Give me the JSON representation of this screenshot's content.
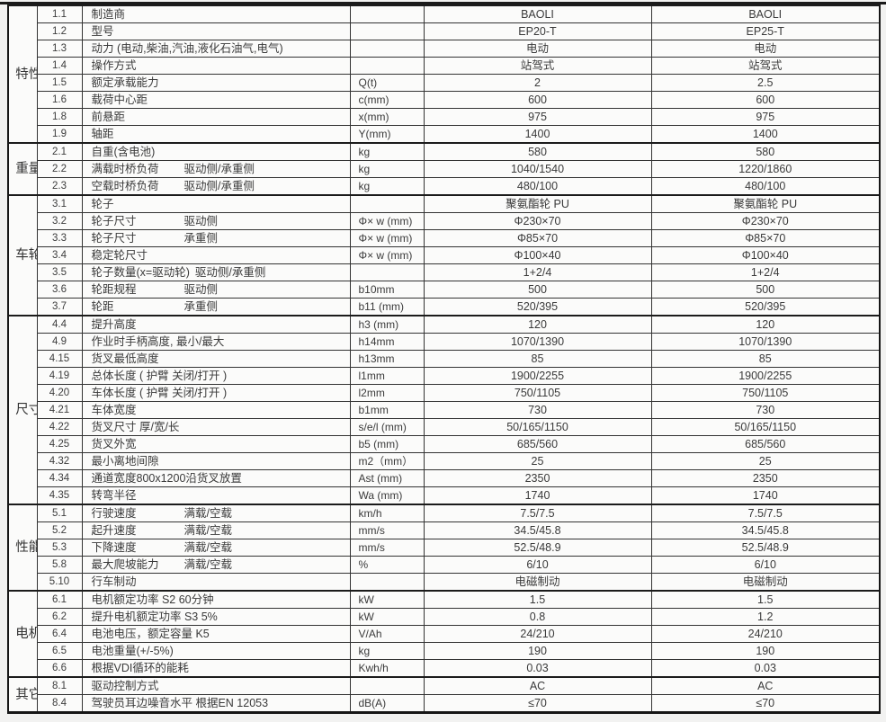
{
  "document": {
    "type": "specification-table",
    "brand": "BAOLI",
    "models": [
      "EP20-T",
      "EP25-T"
    ],
    "border_color": "#1b1b1b",
    "text_color": "#3a3a3a",
    "noise_level_symbol": "≤70"
  },
  "sections": [
    {
      "category": "特性",
      "rows": [
        {
          "no": "1.1",
          "label": "制造商",
          "label2": "",
          "unit": "",
          "v1": "BAOLI",
          "v2": "BAOLI"
        },
        {
          "no": "1.2",
          "label": "型号",
          "label2": "",
          "unit": "",
          "v1": "EP20-T",
          "v2": "EP25-T"
        },
        {
          "no": "1.3",
          "label": "动力 (电动,柴油,汽油,液化石油气,电气)",
          "label2": "",
          "unit": "",
          "v1": "电动",
          "v2": "电动"
        },
        {
          "no": "1.4",
          "label": "操作方式",
          "label2": "",
          "unit": "",
          "v1": "站驾式",
          "v2": "站驾式"
        },
        {
          "no": "1.5",
          "label": "额定承载能力",
          "label2": "",
          "unit": "Q(t)",
          "v1": "2",
          "v2": "2.5"
        },
        {
          "no": "1.6",
          "label": "载荷中心距",
          "label2": "",
          "unit": "c(mm)",
          "v1": "600",
          "v2": "600"
        },
        {
          "no": "1.8",
          "label": "前悬距",
          "label2": "",
          "unit": "x(mm)",
          "v1": "975",
          "v2": "975"
        },
        {
          "no": "1.9",
          "label": "轴距",
          "label2": "",
          "unit": "Y(mm)",
          "v1": "1400",
          "v2": "1400"
        }
      ]
    },
    {
      "category": "重量",
      "rows": [
        {
          "no": "2.1",
          "label": "自重(含电池)",
          "label2": "",
          "unit": "kg",
          "v1": "580",
          "v2": "580"
        },
        {
          "no": "2.2",
          "label": "满载时桥负荷",
          "label2": "驱动侧/承重侧",
          "unit": "kg",
          "v1": "1040/1540",
          "v2": "1220/1860"
        },
        {
          "no": "2.3",
          "label": "空载时桥负荷",
          "label2": "驱动侧/承重侧",
          "unit": "kg",
          "v1": "480/100",
          "v2": "480/100"
        }
      ]
    },
    {
      "category": "车轮底盘",
      "rows": [
        {
          "no": "3.1",
          "label": "轮子",
          "label2": "",
          "unit": "",
          "v1": "聚氨酯轮 PU",
          "v2": "聚氨酯轮 PU"
        },
        {
          "no": "3.2",
          "label": "轮子尺寸",
          "label2": "驱动侧",
          "unit": "Φ× w (mm)",
          "v1": "Φ230×70",
          "v2": "Φ230×70"
        },
        {
          "no": "3.3",
          "label": "轮子尺寸",
          "label2": "承重侧",
          "unit": "Φ× w (mm)",
          "v1": "Φ85×70",
          "v2": "Φ85×70"
        },
        {
          "no": "3.4",
          "label": "稳定轮尺寸",
          "label2": "",
          "unit": "Φ× w (mm)",
          "v1": "Φ100×40",
          "v2": "Φ100×40"
        },
        {
          "no": "3.5",
          "label": "轮子数量(x=驱动轮)",
          "label2": "驱动侧/承重侧",
          "unit": "",
          "v1": "1+2/4",
          "v2": "1+2/4"
        },
        {
          "no": "3.6",
          "label": "轮距规程",
          "label2": "驱动侧",
          "unit": "b10mm",
          "v1": "500",
          "v2": "500"
        },
        {
          "no": "3.7",
          "label": "轮距",
          "label2": "承重侧",
          "unit": "b11 (mm)",
          "v1": "520/395",
          "v2": "520/395"
        }
      ]
    },
    {
      "category": "尺寸",
      "spread": true,
      "rows": [
        {
          "no": "4.4",
          "label": "提升高度",
          "label2": "",
          "unit": "h3 (mm)",
          "v1": "120",
          "v2": "120"
        },
        {
          "no": "4.9",
          "label": "作业时手柄高度, 最小/最大",
          "label2": "",
          "unit": "h14mm",
          "v1": "1070/1390",
          "v2": "1070/1390"
        },
        {
          "no": "4.15",
          "label": "货叉最低高度",
          "label2": "",
          "unit": "h13mm",
          "v1": "85",
          "v2": "85"
        },
        {
          "no": "4.19",
          "label": "总体长度 ( 护臂 关闭/打开 )",
          "label2": "",
          "unit": "l1mm",
          "v1": "1900/2255",
          "v2": "1900/2255"
        },
        {
          "no": "4.20",
          "label": "车体长度 ( 护臂 关闭/打开 )",
          "label2": "",
          "unit": "l2mm",
          "v1": "750/1105",
          "v2": "750/1105"
        },
        {
          "no": "4.21",
          "label": "车体宽度",
          "label2": "",
          "unit": "b1mm",
          "v1": "730",
          "v2": "730"
        },
        {
          "no": "4.22",
          "label": "货叉尺寸  厚/宽/长",
          "label2": "",
          "unit": "s/e/l (mm)",
          "v1": "50/165/1150",
          "v2": "50/165/1150"
        },
        {
          "no": "4.25",
          "label": "货叉外宽",
          "label2": "",
          "unit": "b5 (mm)",
          "v1": "685/560",
          "v2": "685/560"
        },
        {
          "no": "4.32",
          "label": "最小离地间隙",
          "label2": "",
          "unit": "m2（mm）",
          "v1": "25",
          "v2": "25"
        },
        {
          "no": "4.34",
          "label": "通道宽度800x1200沿货叉放置",
          "label2": "",
          "unit": "Ast (mm)",
          "v1": "2350",
          "v2": "2350"
        },
        {
          "no": "4.35",
          "label": "转弯半径",
          "label2": "",
          "unit": "Wa (mm)",
          "v1": "1740",
          "v2": "1740"
        }
      ]
    },
    {
      "category": "性能",
      "rows": [
        {
          "no": "5.1",
          "label": "行驶速度",
          "label2": "满载/空载",
          "unit": "km/h",
          "v1": "7.5/7.5",
          "v2": "7.5/7.5"
        },
        {
          "no": "5.2",
          "label": "起升速度",
          "label2": "满载/空载",
          "unit": "mm/s",
          "v1": "34.5/45.8",
          "v2": "34.5/45.8"
        },
        {
          "no": "5.3",
          "label": "下降速度",
          "label2": "满载/空载",
          "unit": "mm/s",
          "v1": "52.5/48.9",
          "v2": "52.5/48.9"
        },
        {
          "no": "5.8",
          "label": "最大爬坡能力",
          "label2": "满载/空载",
          "unit": "%",
          "v1": "6/10",
          "v2": "6/10"
        },
        {
          "no": "5.10",
          "label": "行车制动",
          "label2": "",
          "unit": "",
          "v1": "电磁制动",
          "v2": "电磁制动"
        }
      ]
    },
    {
      "category": "电机",
      "rows": [
        {
          "no": "6.1",
          "label": "电机额定功率 S2  60分钟",
          "label2": "",
          "unit": "kW",
          "v1": "1.5",
          "v2": "1.5"
        },
        {
          "no": "6.2",
          "label": "提升电机额定功率 S3  5%",
          "label2": "",
          "unit": "kW",
          "v1": "0.8",
          "v2": "1.2"
        },
        {
          "no": "6.4",
          "label": "电池电压，额定容量 K5",
          "label2": "",
          "unit": "V/Ah",
          "v1": "24/210",
          "v2": "24/210"
        },
        {
          "no": "6.5",
          "label": "电池重量(+/-5%)",
          "label2": "",
          "unit": "kg",
          "v1": "190",
          "v2": "190"
        },
        {
          "no": "6.6",
          "label": "根据VDI循环的能耗",
          "label2": "",
          "unit": "Kwh/h",
          "v1": "0.03",
          "v2": "0.03"
        }
      ]
    },
    {
      "category": "其它",
      "rows": [
        {
          "no": "8.1",
          "label": "驱动控制方式",
          "label2": "",
          "unit": "",
          "v1": "AC",
          "v2": "AC"
        },
        {
          "no": "8.4",
          "label": "驾驶员耳边噪音水平 根据EN 12053",
          "label2": "",
          "unit": "dB(A)",
          "v1": "≤70",
          "v2": "≤70"
        }
      ]
    }
  ]
}
